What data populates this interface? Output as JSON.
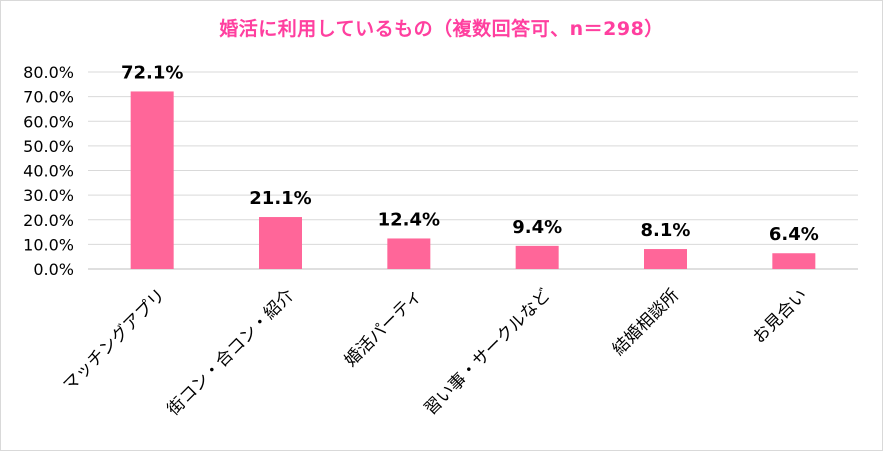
{
  "chart_data": {
    "type": "bar",
    "title": "婚活に利用しているもの（複数回答可、n＝298）",
    "categories": [
      "マッチングアプリ",
      "街コン・合コン・紹介",
      "婚活パーティ",
      "習い事・サークルなど",
      "結婚相談所",
      "お見合い"
    ],
    "values": [
      72.1,
      21.1,
      12.4,
      9.4,
      8.1,
      6.4
    ],
    "value_labels": [
      "72.1%",
      "21.1%",
      "12.4%",
      "9.4%",
      "8.1%",
      "6.4%"
    ],
    "ylim": [
      0,
      80
    ],
    "yticks": [
      "0.0%",
      "10.0%",
      "20.0%",
      "30.0%",
      "40.0%",
      "50.0%",
      "60.0%",
      "70.0%",
      "80.0%"
    ],
    "grid": true,
    "legend": "none",
    "bar_color": "#ff6699",
    "title_color": "#ff3f9f"
  }
}
